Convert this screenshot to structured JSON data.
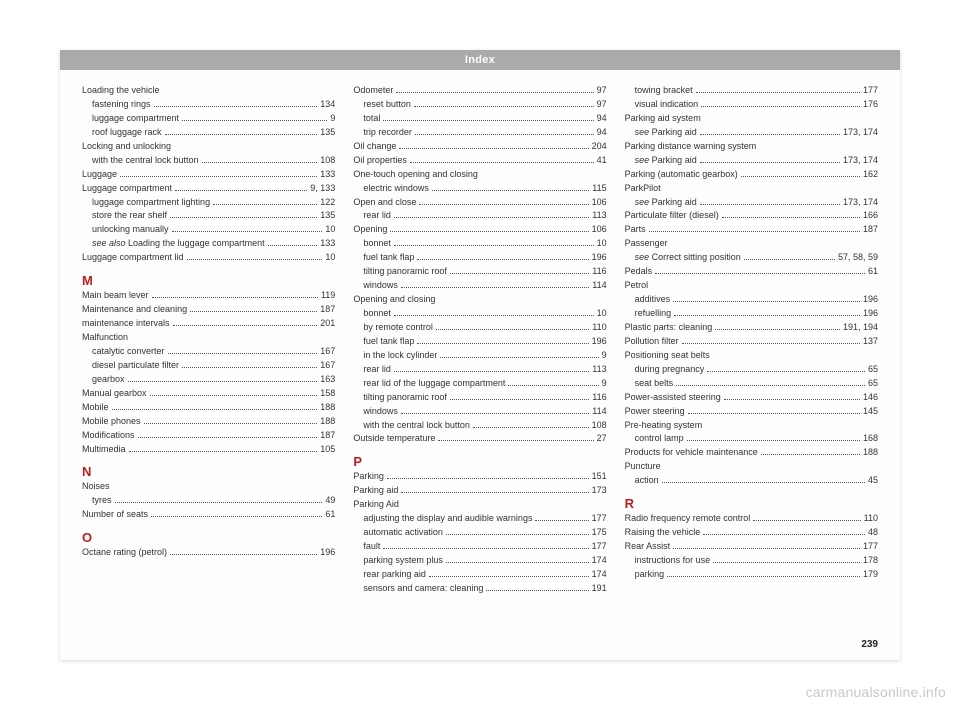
{
  "header": {
    "title": "Index"
  },
  "page_number": "239",
  "watermark": "carmanualsonline.info",
  "sections": {
    "M": "M",
    "N": "N",
    "O": "O",
    "P": "P",
    "R": "R"
  },
  "col1": [
    {
      "label": "Loading the vehicle",
      "page": "",
      "indent": false
    },
    {
      "label": "fastening rings",
      "page": "134",
      "indent": true
    },
    {
      "label": "luggage compartment",
      "page": "9",
      "indent": true
    },
    {
      "label": "roof luggage rack",
      "page": "135",
      "indent": true
    },
    {
      "label": "Locking and unlocking",
      "page": "",
      "indent": false
    },
    {
      "label": "with the central lock button",
      "page": "108",
      "indent": true
    },
    {
      "label": "Luggage",
      "page": "133",
      "indent": false
    },
    {
      "label": "Luggage compartment",
      "page": "9, 133",
      "indent": false
    },
    {
      "label": "luggage compartment lighting",
      "page": "122",
      "indent": true
    },
    {
      "label": "store the rear shelf",
      "page": "135",
      "indent": true
    },
    {
      "label": "unlocking manually",
      "page": "10",
      "indent": true
    },
    {
      "label": "see also Loading the luggage compartment",
      "page": "133",
      "indent": true,
      "italicPrefix": "see also "
    },
    {
      "label": "Luggage compartment lid",
      "page": "10",
      "indent": false
    },
    {
      "section": "M"
    },
    {
      "label": "Main beam lever",
      "page": "119",
      "indent": false
    },
    {
      "label": "Maintenance and cleaning",
      "page": "187",
      "indent": false
    },
    {
      "label": "maintenance intervals",
      "page": "201",
      "indent": false
    },
    {
      "label": "Malfunction",
      "page": "",
      "indent": false
    },
    {
      "label": "catalytic converter",
      "page": "167",
      "indent": true
    },
    {
      "label": "diesel particulate filter",
      "page": "167",
      "indent": true
    },
    {
      "label": "gearbox",
      "page": "163",
      "indent": true
    },
    {
      "label": "Manual gearbox",
      "page": "158",
      "indent": false
    },
    {
      "label": "Mobile",
      "page": "188",
      "indent": false
    },
    {
      "label": "Mobile phones",
      "page": "188",
      "indent": false
    },
    {
      "label": "Modifications",
      "page": "187",
      "indent": false
    },
    {
      "label": "Multimedia",
      "page": "105",
      "indent": false
    },
    {
      "section": "N"
    },
    {
      "label": "Noises",
      "page": "",
      "indent": false
    },
    {
      "label": "tyres",
      "page": "49",
      "indent": true
    },
    {
      "label": "Number of seats",
      "page": "61",
      "indent": false
    },
    {
      "section": "O"
    },
    {
      "label": "Octane rating (petrol)",
      "page": "196",
      "indent": false
    }
  ],
  "col2": [
    {
      "label": "Odometer",
      "page": "97",
      "indent": false
    },
    {
      "label": "reset button",
      "page": "97",
      "indent": true
    },
    {
      "label": "total",
      "page": "94",
      "indent": true
    },
    {
      "label": "trip recorder",
      "page": "94",
      "indent": true
    },
    {
      "label": "Oil change",
      "page": "204",
      "indent": false
    },
    {
      "label": "Oil properties",
      "page": "41",
      "indent": false
    },
    {
      "label": "One-touch opening and closing",
      "page": "",
      "indent": false
    },
    {
      "label": "electric windows",
      "page": "115",
      "indent": true
    },
    {
      "label": "Open and close",
      "page": "106",
      "indent": false
    },
    {
      "label": "rear lid",
      "page": "113",
      "indent": true
    },
    {
      "label": "Opening",
      "page": "106",
      "indent": false
    },
    {
      "label": "bonnet",
      "page": "10",
      "indent": true
    },
    {
      "label": "fuel tank flap",
      "page": "196",
      "indent": true
    },
    {
      "label": "tilting panoramic roof",
      "page": "116",
      "indent": true
    },
    {
      "label": "windows",
      "page": "114",
      "indent": true
    },
    {
      "label": "Opening and closing",
      "page": "",
      "indent": false
    },
    {
      "label": "bonnet",
      "page": "10",
      "indent": true
    },
    {
      "label": "by remote control",
      "page": "110",
      "indent": true
    },
    {
      "label": "fuel tank flap",
      "page": "196",
      "indent": true
    },
    {
      "label": "in the lock cylinder",
      "page": "9",
      "indent": true
    },
    {
      "label": "rear lid",
      "page": "113",
      "indent": true
    },
    {
      "label": "rear lid of the luggage compartment",
      "page": "9",
      "indent": true
    },
    {
      "label": "tilting panoramic roof",
      "page": "116",
      "indent": true
    },
    {
      "label": "windows",
      "page": "114",
      "indent": true
    },
    {
      "label": "with the central lock button",
      "page": "108",
      "indent": true
    },
    {
      "label": "Outside temperature",
      "page": "27",
      "indent": false
    },
    {
      "section": "P"
    },
    {
      "label": "Parking",
      "page": "151",
      "indent": false
    },
    {
      "label": "Parking aid",
      "page": "173",
      "indent": false
    },
    {
      "label": "Parking Aid",
      "page": "",
      "indent": false
    },
    {
      "label": "adjusting the display and audible warnings",
      "page": "177",
      "indent": true
    },
    {
      "label": "automatic activation",
      "page": "175",
      "indent": true
    },
    {
      "label": "fault",
      "page": "177",
      "indent": true
    },
    {
      "label": "parking system plus",
      "page": "174",
      "indent": true
    },
    {
      "label": "rear parking aid",
      "page": "174",
      "indent": true
    },
    {
      "label": "sensors and camera: cleaning",
      "page": "191",
      "indent": true
    }
  ],
  "col3": [
    {
      "label": "towing bracket",
      "page": "177",
      "indent": true
    },
    {
      "label": "visual indication",
      "page": "176",
      "indent": true
    },
    {
      "label": "Parking aid system",
      "page": "",
      "indent": false
    },
    {
      "label": "see Parking aid",
      "page": "173, 174",
      "indent": true,
      "italicPrefix": "see "
    },
    {
      "label": "Parking distance warning system",
      "page": "",
      "indent": false
    },
    {
      "label": "see Parking aid",
      "page": "173, 174",
      "indent": true,
      "italicPrefix": "see "
    },
    {
      "label": "Parking (automatic gearbox)",
      "page": "162",
      "indent": false
    },
    {
      "label": "ParkPilot",
      "page": "",
      "indent": false
    },
    {
      "label": "see Parking aid",
      "page": "173, 174",
      "indent": true,
      "italicPrefix": "see "
    },
    {
      "label": "Particulate filter (diesel)",
      "page": "166",
      "indent": false
    },
    {
      "label": "Parts",
      "page": "187",
      "indent": false
    },
    {
      "label": "Passenger",
      "page": "",
      "indent": false
    },
    {
      "label": "see Correct sitting position",
      "page": "57, 58, 59",
      "indent": true,
      "italicPrefix": "see "
    },
    {
      "label": "Pedals",
      "page": "61",
      "indent": false
    },
    {
      "label": "Petrol",
      "page": "",
      "indent": false
    },
    {
      "label": "additives",
      "page": "196",
      "indent": true
    },
    {
      "label": "refuelling",
      "page": "196",
      "indent": true
    },
    {
      "label": "Plastic parts: cleaning",
      "page": "191, 194",
      "indent": false
    },
    {
      "label": "Pollution filter",
      "page": "137",
      "indent": false
    },
    {
      "label": "Positioning seat belts",
      "page": "",
      "indent": false
    },
    {
      "label": "during pregnancy",
      "page": "65",
      "indent": true
    },
    {
      "label": "seat belts",
      "page": "65",
      "indent": true
    },
    {
      "label": "Power-assisted steering",
      "page": "146",
      "indent": false
    },
    {
      "label": "Power steering",
      "page": "145",
      "indent": false
    },
    {
      "label": "Pre-heating system",
      "page": "",
      "indent": false
    },
    {
      "label": "control lamp",
      "page": "168",
      "indent": true
    },
    {
      "label": "Products for vehicle maintenance",
      "page": "188",
      "indent": false
    },
    {
      "label": "Puncture",
      "page": "",
      "indent": false
    },
    {
      "label": "action",
      "page": "45",
      "indent": true
    },
    {
      "section": "R"
    },
    {
      "label": "Radio frequency remote control",
      "page": "110",
      "indent": false
    },
    {
      "label": "Raising the vehicle",
      "page": "48",
      "indent": false
    },
    {
      "label": "Rear Assist",
      "page": "177",
      "indent": false
    },
    {
      "label": "instructions for use",
      "page": "178",
      "indent": true
    },
    {
      "label": "parking",
      "page": "179",
      "indent": true
    }
  ]
}
